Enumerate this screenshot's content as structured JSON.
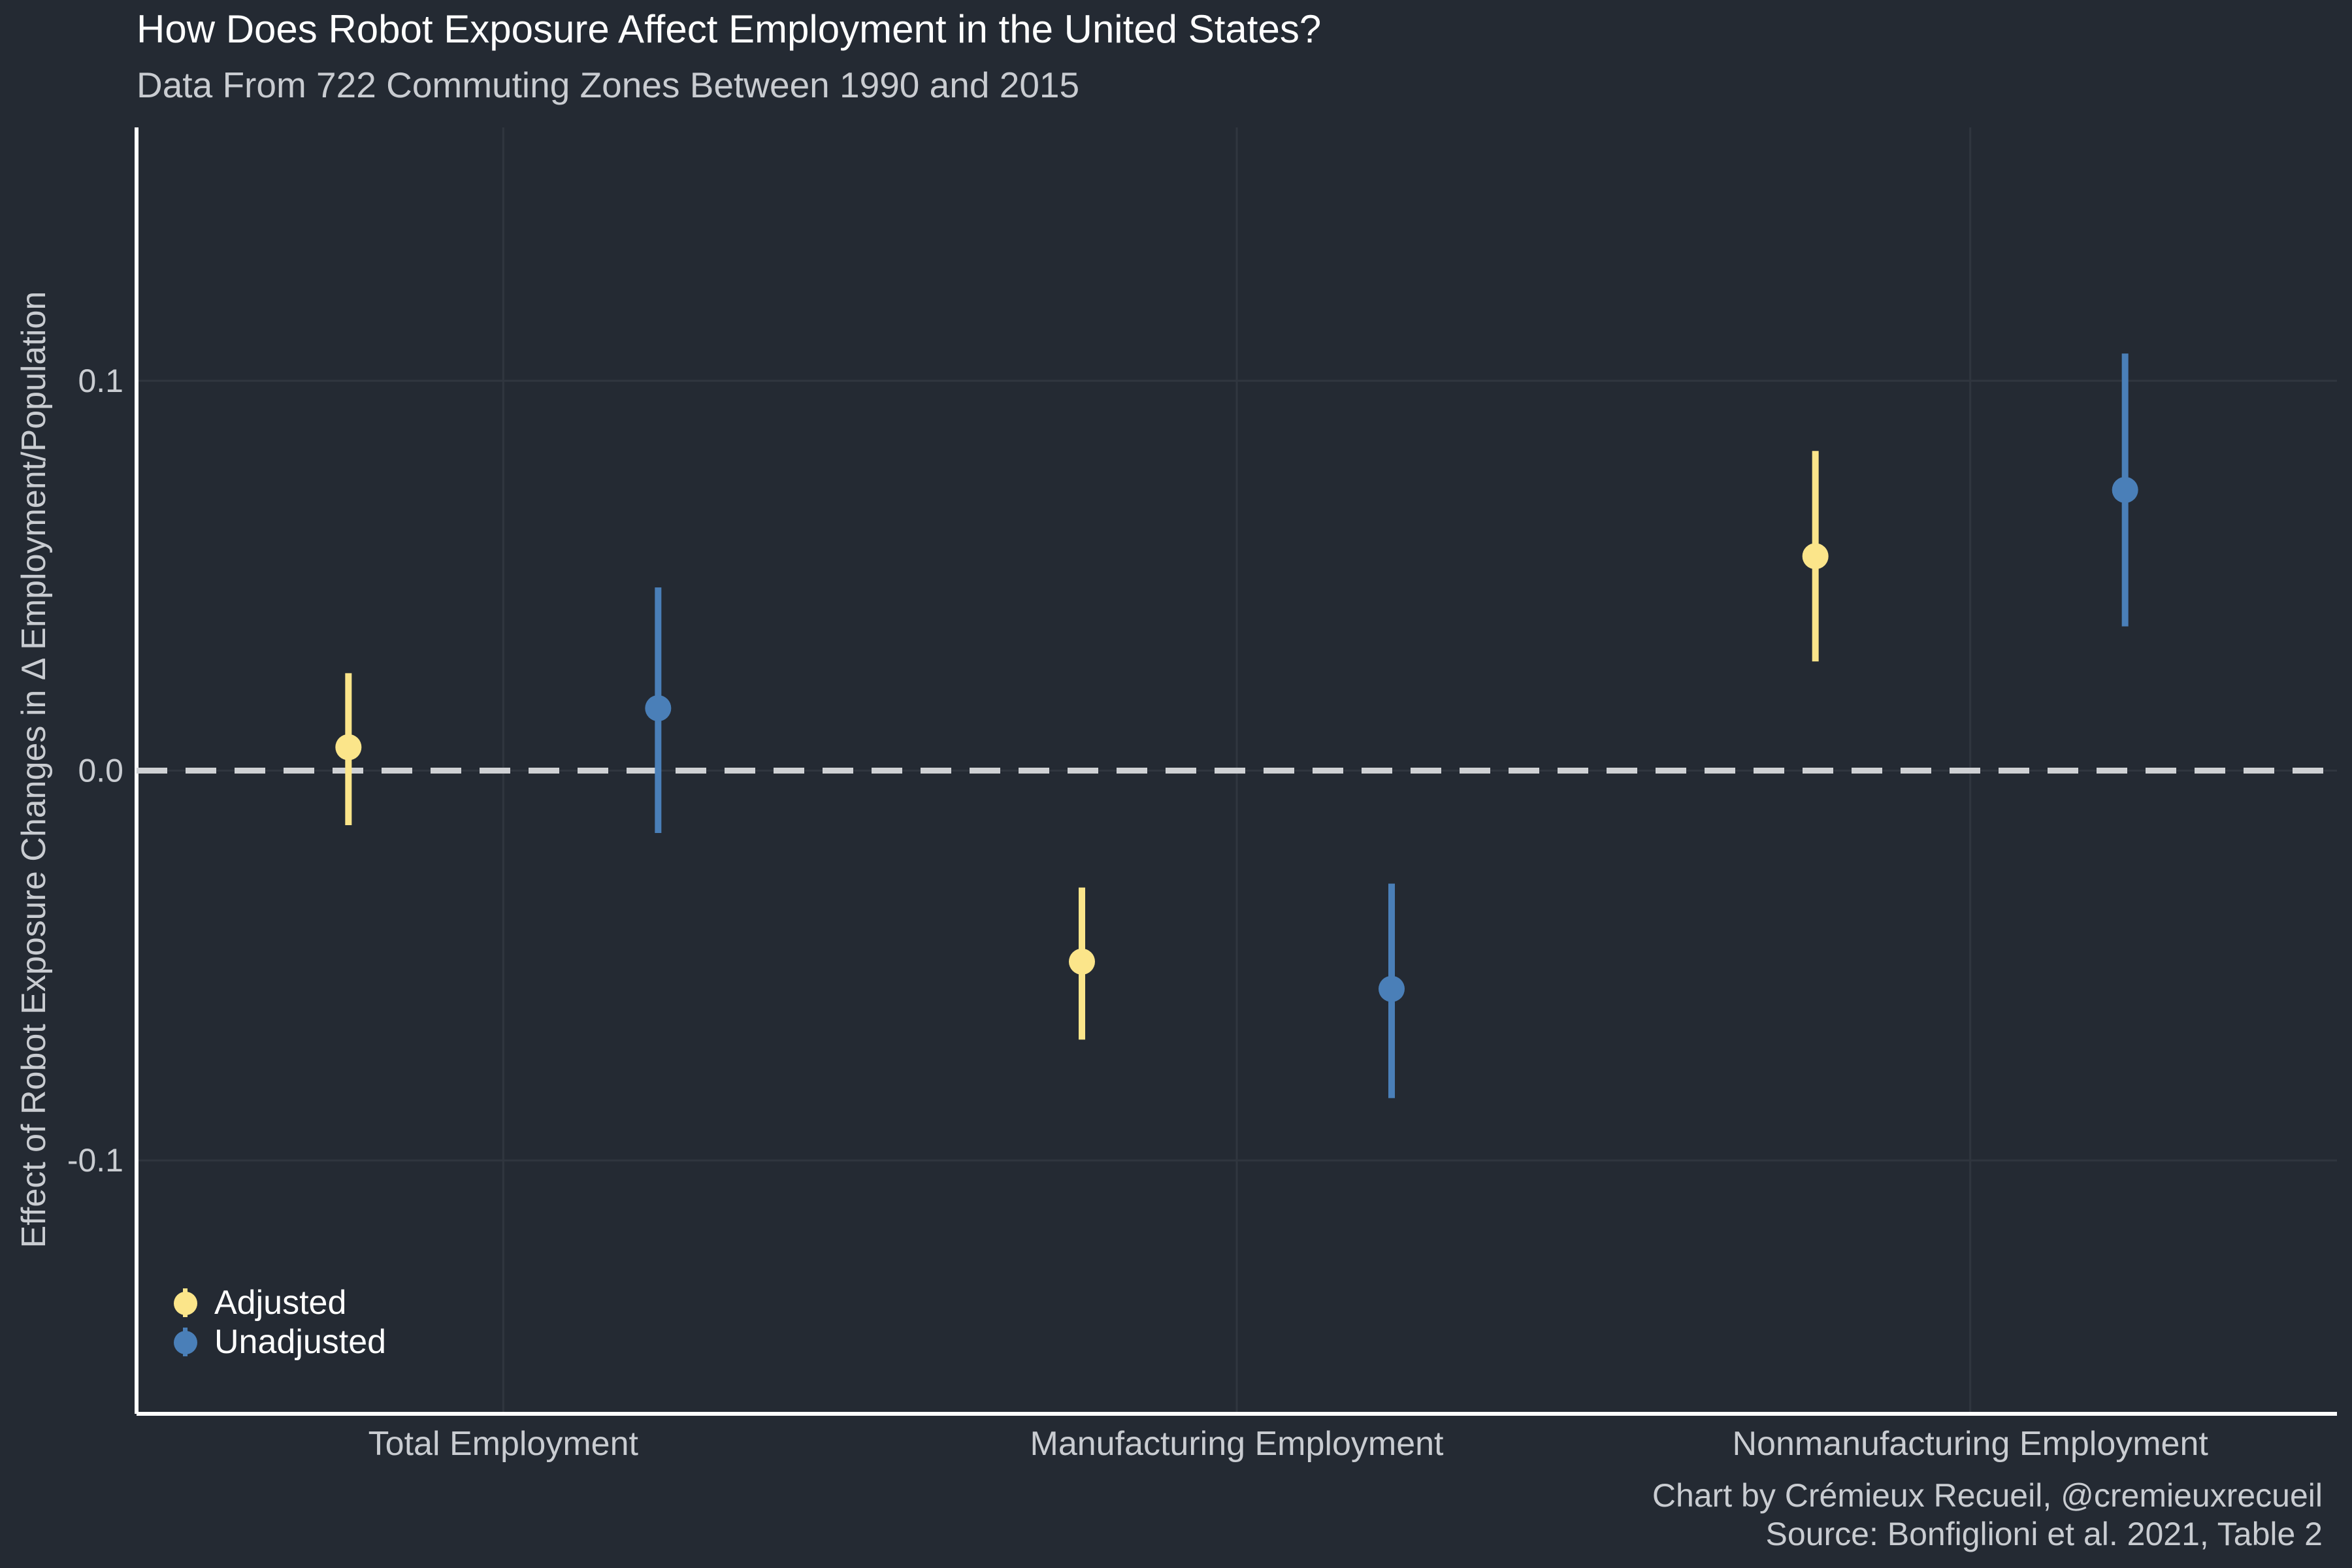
{
  "colors": {
    "background": "#242a33",
    "grid": "#30363f",
    "axis": "#ffffff",
    "zero_line": "#cfd1d4",
    "adjusted": "#fbe58a",
    "unadjusted": "#4a7fb8"
  },
  "chart_data": {
    "type": "pointrange",
    "title": "How Does Robot Exposure Affect Employment in the United States?",
    "subtitle": "Data From 722 Commuting Zones Between 1990 and 2015",
    "xlabel": "",
    "ylabel": "Effect of Robot Exposure Changes in Δ Employment/Population",
    "categories": [
      "Total Employment",
      "Manufacturing Employment",
      "Nonmanufacturing Employment"
    ],
    "ylim": [
      -0.165,
      0.165
    ],
    "y_ticks": [
      -0.1,
      0.0,
      0.1
    ],
    "y_tick_labels": [
      "-0.1",
      "0.0",
      "0.1"
    ],
    "reference_line": {
      "y": 0,
      "style": "dashed"
    },
    "grid": true,
    "legend_position": "bottom-left",
    "series": [
      {
        "name": "Adjusted",
        "color": "#fbe58a",
        "points": [
          {
            "category": "Total Employment",
            "estimate": 0.006,
            "lower": -0.014,
            "upper": 0.025
          },
          {
            "category": "Manufacturing Employment",
            "estimate": -0.049,
            "lower": -0.069,
            "upper": -0.03
          },
          {
            "category": "Nonmanufacturing Employment",
            "estimate": 0.055,
            "lower": 0.028,
            "upper": 0.082
          }
        ]
      },
      {
        "name": "Unadjusted",
        "color": "#4a7fb8",
        "points": [
          {
            "category": "Total Employment",
            "estimate": 0.016,
            "lower": -0.016,
            "upper": 0.047
          },
          {
            "category": "Manufacturing Employment",
            "estimate": -0.056,
            "lower": -0.084,
            "upper": -0.029
          },
          {
            "category": "Nonmanufacturing Employment",
            "estimate": 0.072,
            "lower": 0.037,
            "upper": 0.107
          }
        ]
      }
    ],
    "caption": [
      "Chart by Crémieux Recueil, @cremieuxrecueil",
      "Source: Bonfiglioni et al. 2021, Table 2"
    ]
  }
}
